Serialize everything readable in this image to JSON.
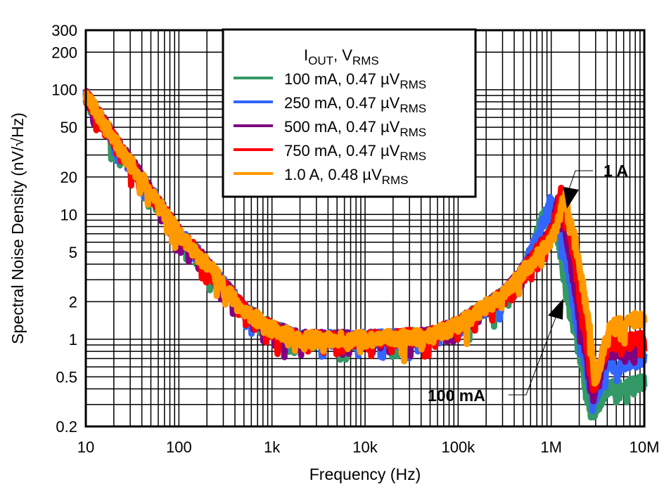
{
  "chart_data": {
    "type": "line",
    "xlabel": "Frequency (Hz)",
    "ylabel": "Spectral Noise Density (nV/√Hz)",
    "xscale": "log",
    "yscale": "log",
    "xlim": [
      10,
      10000000
    ],
    "ylim": [
      0.2,
      300
    ],
    "grid": true,
    "legend_placement": "top-center",
    "legend_title": {
      "main": "I",
      "sub1": "OUT",
      "mid": ", V",
      "sub2": "RMS"
    },
    "x_ticks": [
      {
        "value": 10,
        "label": "10"
      },
      {
        "value": 100,
        "label": "100"
      },
      {
        "value": 1000,
        "label": "1k"
      },
      {
        "value": 10000,
        "label": "10k"
      },
      {
        "value": 100000,
        "label": "100k"
      },
      {
        "value": 1000000,
        "label": "1M"
      },
      {
        "value": 10000000,
        "label": "10M"
      }
    ],
    "y_ticks": [
      {
        "value": 300,
        "label": "300"
      },
      {
        "value": 200,
        "label": "200"
      },
      {
        "value": 100,
        "label": "100"
      },
      {
        "value": 50,
        "label": "50"
      },
      {
        "value": 20,
        "label": "20"
      },
      {
        "value": 10,
        "label": "10"
      },
      {
        "value": 5,
        "label": "5"
      },
      {
        "value": 2,
        "label": "2"
      },
      {
        "value": 1,
        "label": "1"
      },
      {
        "value": 0.5,
        "label": "0.5"
      },
      {
        "value": 0.2,
        "label": "0.2"
      }
    ],
    "series": [
      {
        "name": "100 mA, 0.47 µV",
        "sub": "RMS",
        "color": "#339966",
        "points": [
          [
            10,
            90
          ],
          [
            20,
            40
          ],
          [
            50,
            15
          ],
          [
            100,
            7
          ],
          [
            200,
            4
          ],
          [
            500,
            1.7
          ],
          [
            1000,
            1.2
          ],
          [
            2000,
            1.0
          ],
          [
            10000,
            1.0
          ],
          [
            50000,
            1.05
          ],
          [
            100000,
            1.3
          ],
          [
            300000,
            2.2
          ],
          [
            500000,
            3.5
          ],
          [
            800000,
            9
          ],
          [
            1000000,
            12
          ],
          [
            1200000,
            6
          ],
          [
            1500000,
            2
          ],
          [
            2000000,
            0.8
          ],
          [
            2700000,
            0.25
          ],
          [
            4000000,
            0.4
          ],
          [
            10000000,
            0.45
          ]
        ]
      },
      {
        "name": "250 mA, 0.47 µV",
        "sub": "RMS",
        "color": "#3366ff",
        "points": [
          [
            10,
            90
          ],
          [
            20,
            40
          ],
          [
            50,
            15
          ],
          [
            100,
            7
          ],
          [
            200,
            4
          ],
          [
            500,
            1.7
          ],
          [
            1000,
            1.2
          ],
          [
            2000,
            1.0
          ],
          [
            10000,
            1.0
          ],
          [
            50000,
            1.05
          ],
          [
            100000,
            1.3
          ],
          [
            300000,
            2.2
          ],
          [
            500000,
            3.5
          ],
          [
            800000,
            8
          ],
          [
            1000000,
            13
          ],
          [
            1300000,
            7
          ],
          [
            1700000,
            2
          ],
          [
            2500000,
            0.5
          ],
          [
            2800000,
            0.3
          ],
          [
            4000000,
            0.6
          ],
          [
            10000000,
            0.7
          ]
        ]
      },
      {
        "name": "500 mA, 0.47 µV",
        "sub": "RMS",
        "color": "#800080",
        "points": [
          [
            10,
            90
          ],
          [
            20,
            40
          ],
          [
            50,
            15
          ],
          [
            100,
            7
          ],
          [
            200,
            4
          ],
          [
            500,
            1.7
          ],
          [
            1000,
            1.2
          ],
          [
            2000,
            1.0
          ],
          [
            10000,
            1.0
          ],
          [
            50000,
            1.05
          ],
          [
            100000,
            1.3
          ],
          [
            300000,
            2.2
          ],
          [
            500000,
            3.5
          ],
          [
            1000000,
            7
          ],
          [
            1200000,
            13
          ],
          [
            1500000,
            6
          ],
          [
            2000000,
            1.5
          ],
          [
            2800000,
            0.35
          ],
          [
            4000000,
            0.8
          ],
          [
            10000000,
            0.9
          ]
        ]
      },
      {
        "name": "750 mA, 0.47 µV",
        "sub": "RMS",
        "color": "#ff0000",
        "points": [
          [
            10,
            90
          ],
          [
            20,
            40
          ],
          [
            50,
            15
          ],
          [
            100,
            7
          ],
          [
            200,
            4
          ],
          [
            500,
            1.7
          ],
          [
            1000,
            1.2
          ],
          [
            2000,
            1.0
          ],
          [
            10000,
            1.0
          ],
          [
            50000,
            1.05
          ],
          [
            100000,
            1.3
          ],
          [
            300000,
            2.2
          ],
          [
            500000,
            3.5
          ],
          [
            1000000,
            7
          ],
          [
            1300000,
            15
          ],
          [
            1600000,
            7
          ],
          [
            2200000,
            1.5
          ],
          [
            2800000,
            0.4
          ],
          [
            4000000,
            0.9
          ],
          [
            10000000,
            1.0
          ]
        ]
      },
      {
        "name": "1.0 A, 0.48 µV",
        "sub": "RMS",
        "color": "#ff9900",
        "points": [
          [
            10,
            90
          ],
          [
            20,
            40
          ],
          [
            50,
            15
          ],
          [
            100,
            7
          ],
          [
            200,
            4
          ],
          [
            500,
            1.7
          ],
          [
            1000,
            1.2
          ],
          [
            2000,
            1.0
          ],
          [
            10000,
            1.0
          ],
          [
            50000,
            1.05
          ],
          [
            100000,
            1.3
          ],
          [
            300000,
            2.2
          ],
          [
            500000,
            3.5
          ],
          [
            1000000,
            6
          ],
          [
            1400000,
            14
          ],
          [
            1800000,
            6
          ],
          [
            2500000,
            1.5
          ],
          [
            3000000,
            0.4
          ],
          [
            4000000,
            1.2
          ],
          [
            10000000,
            1.5
          ]
        ]
      }
    ],
    "annotations": [
      {
        "text": "1 A",
        "target": [
          1400000,
          14
        ]
      },
      {
        "text": "100 mA",
        "target": [
          1500000,
          2
        ]
      }
    ]
  }
}
